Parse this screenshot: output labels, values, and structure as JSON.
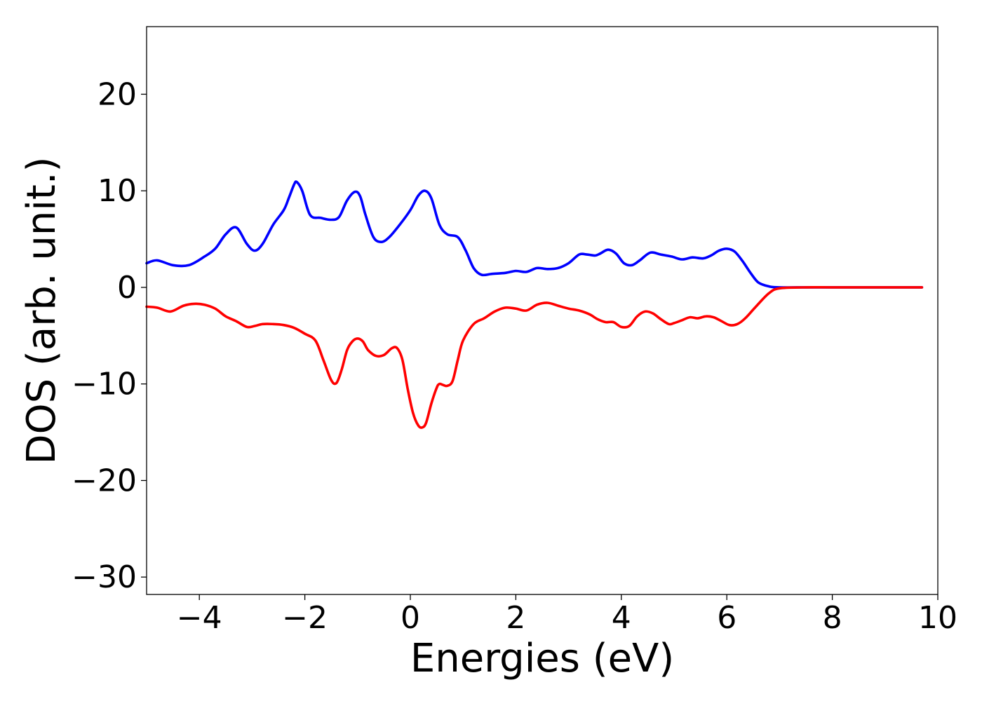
{
  "chart_data": {
    "type": "line",
    "xlabel": "Energies (eV)",
    "ylabel": "DOS (arb. unit.)",
    "xlim": [
      -5,
      10
    ],
    "ylim": [
      -31.8,
      27
    ],
    "xticks": [
      -4,
      -2,
      0,
      2,
      4,
      6,
      8,
      10
    ],
    "xtick_labels": [
      "−4",
      "−2",
      "0",
      "2",
      "4",
      "6",
      "8",
      "10"
    ],
    "yticks": [
      20,
      10,
      0,
      -10,
      -20,
      -30
    ],
    "ytick_labels": [
      "20",
      "10",
      "0",
      "−10",
      "−20",
      "−30"
    ],
    "grid": false,
    "series": [
      {
        "color": "#0000ff",
        "x": [
          -5.0,
          -4.8,
          -4.5,
          -4.2,
          -3.9,
          -3.7,
          -3.5,
          -3.3,
          -3.1,
          -2.95,
          -2.8,
          -2.6,
          -2.4,
          -2.3,
          -2.2,
          -2.15,
          -2.05,
          -1.9,
          -1.7,
          -1.5,
          -1.35,
          -1.2,
          -1.05,
          -0.95,
          -0.85,
          -0.7,
          -0.55,
          -0.4,
          -0.2,
          0.0,
          0.15,
          0.28,
          0.4,
          0.55,
          0.7,
          0.9,
          1.05,
          1.2,
          1.35,
          1.55,
          1.8,
          2.0,
          2.2,
          2.4,
          2.6,
          2.8,
          3.0,
          3.2,
          3.35,
          3.5,
          3.6,
          3.75,
          3.9,
          4.05,
          4.2,
          4.35,
          4.55,
          4.75,
          4.95,
          5.15,
          5.35,
          5.55,
          5.7,
          5.85,
          6.0,
          6.15,
          6.3,
          6.45,
          6.6,
          6.8,
          7.0,
          7.5,
          8.0,
          9.0,
          9.7
        ],
        "y": [
          2.5,
          2.8,
          2.3,
          2.3,
          3.2,
          4.0,
          5.5,
          6.2,
          4.5,
          3.8,
          4.5,
          6.5,
          8.0,
          9.3,
          10.7,
          10.9,
          10.0,
          7.5,
          7.2,
          7.0,
          7.3,
          9.0,
          9.9,
          9.4,
          7.5,
          5.2,
          4.7,
          5.2,
          6.5,
          8.0,
          9.5,
          10.0,
          9.2,
          6.5,
          5.5,
          5.2,
          3.8,
          2.0,
          1.3,
          1.4,
          1.5,
          1.7,
          1.6,
          2.0,
          1.9,
          2.0,
          2.5,
          3.4,
          3.4,
          3.3,
          3.5,
          3.9,
          3.5,
          2.5,
          2.3,
          2.8,
          3.6,
          3.4,
          3.2,
          2.9,
          3.1,
          3.0,
          3.3,
          3.8,
          4.0,
          3.7,
          2.7,
          1.5,
          0.5,
          0.1,
          0.0,
          0.0,
          0.0,
          0.0,
          0.0
        ]
      },
      {
        "color": "#ff0000",
        "x": [
          -5.0,
          -4.8,
          -4.55,
          -4.3,
          -4.1,
          -3.9,
          -3.7,
          -3.5,
          -3.3,
          -3.1,
          -2.95,
          -2.8,
          -2.6,
          -2.4,
          -2.2,
          -2.0,
          -1.8,
          -1.65,
          -1.5,
          -1.4,
          -1.3,
          -1.2,
          -1.1,
          -1.0,
          -0.9,
          -0.8,
          -0.65,
          -0.5,
          -0.35,
          -0.25,
          -0.15,
          -0.05,
          0.05,
          0.15,
          0.23,
          0.3,
          0.4,
          0.5,
          0.55,
          0.62,
          0.7,
          0.8,
          0.9,
          1.0,
          1.2,
          1.4,
          1.6,
          1.8,
          2.0,
          2.2,
          2.4,
          2.6,
          2.8,
          3.0,
          3.2,
          3.4,
          3.55,
          3.7,
          3.85,
          4.0,
          4.15,
          4.3,
          4.45,
          4.6,
          4.75,
          4.9,
          5.0,
          5.15,
          5.3,
          5.45,
          5.6,
          5.75,
          5.9,
          6.05,
          6.2,
          6.35,
          6.55,
          6.8,
          7.0,
          7.5,
          8.0,
          9.0,
          9.7
        ],
        "y": [
          -2.0,
          -2.1,
          -2.5,
          -1.9,
          -1.7,
          -1.8,
          -2.2,
          -3.0,
          -3.5,
          -4.1,
          -4.0,
          -3.8,
          -3.8,
          -3.9,
          -4.2,
          -4.8,
          -5.5,
          -7.5,
          -9.6,
          -9.9,
          -8.5,
          -6.5,
          -5.6,
          -5.3,
          -5.6,
          -6.5,
          -7.1,
          -7.0,
          -6.3,
          -6.3,
          -7.5,
          -10.5,
          -13.0,
          -14.3,
          -14.5,
          -14.0,
          -12.0,
          -10.4,
          -10.0,
          -10.1,
          -10.2,
          -9.7,
          -7.5,
          -5.5,
          -3.8,
          -3.2,
          -2.5,
          -2.1,
          -2.2,
          -2.4,
          -1.8,
          -1.6,
          -1.9,
          -2.2,
          -2.4,
          -2.8,
          -3.3,
          -3.6,
          -3.6,
          -4.1,
          -4.0,
          -3.0,
          -2.5,
          -2.7,
          -3.3,
          -3.8,
          -3.7,
          -3.4,
          -3.1,
          -3.2,
          -3.0,
          -3.1,
          -3.5,
          -3.9,
          -3.8,
          -3.2,
          -2.0,
          -0.6,
          -0.1,
          0.0,
          0.0,
          0.0,
          0.0
        ]
      }
    ]
  }
}
